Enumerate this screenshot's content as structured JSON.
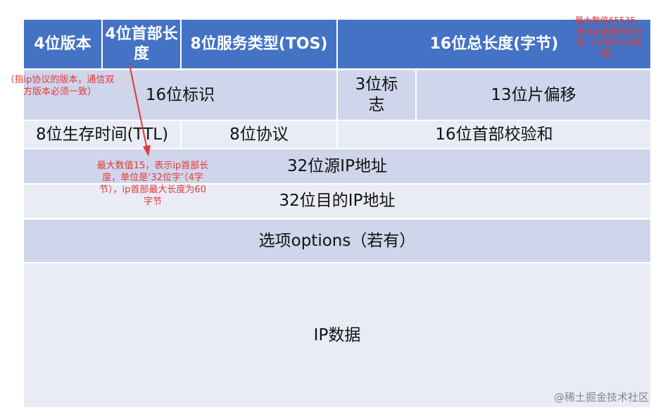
{
  "header": {
    "version": "4位版本",
    "ihl": "4位首部长度",
    "tos": "8位服务类型(TOS)",
    "total_length": "16位总长度(字节)"
  },
  "row2": {
    "identification": "16位标识",
    "flags": "3位标志",
    "fragment_offset": "13位片偏移"
  },
  "row3": {
    "ttl": "8位生存时间(TTL)",
    "protocol": "8位协议",
    "checksum": "16位首部校验和"
  },
  "row4": {
    "src": "32位源IP地址"
  },
  "row5": {
    "dst": "32位目的IP地址"
  },
  "row6": {
    "options": "选项options（若有）"
  },
  "row7": {
    "data": "IP数据"
  },
  "notes": {
    "version_note": "（指ip协议的版本，通信双方版本必须一致）",
    "ihl_note": "最大数值15，表示ip首部长度，单位是‘32位字’（4字节），ip首部最大长度为60字节",
    "total_note": "最大数值65535，表示ip数据报总长度（ip首部+ip数据）"
  },
  "watermark": "@稀土掘金技术社区",
  "colors": {
    "header": "#4472c4",
    "row_dark": "#cfd5ea",
    "row_light": "#e9ebf5",
    "annotation": "#e53935"
  }
}
